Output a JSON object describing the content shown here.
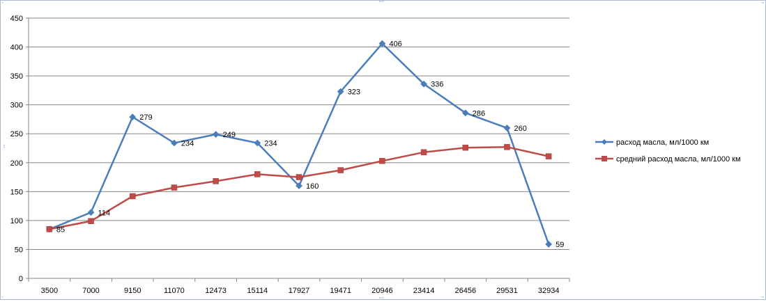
{
  "chart_data": {
    "type": "line",
    "categories": [
      "3500",
      "7000",
      "9150",
      "11070",
      "12473",
      "15114",
      "17927",
      "19471",
      "20946",
      "23414",
      "26456",
      "29531",
      "32934"
    ],
    "ylim": [
      0,
      450
    ],
    "yticks": [
      0,
      50,
      100,
      150,
      200,
      250,
      300,
      350,
      400,
      450
    ],
    "grid": true,
    "legend_position": "right",
    "series": [
      {
        "name": "расход масла, мл/1000 км",
        "color": "#4a7ebb",
        "marker": "diamond",
        "values": [
          85,
          114,
          279,
          234,
          249,
          234,
          160,
          323,
          406,
          336,
          286,
          260,
          59
        ],
        "data_labels": [
          "85",
          "114",
          "279",
          "234",
          "249",
          "234",
          "160",
          "323",
          "406",
          "336",
          "286",
          "260",
          "59"
        ]
      },
      {
        "name": "средний расход масла, мл/1000 км",
        "color": "#be4b48",
        "marker": "square",
        "values": [
          85,
          99,
          142,
          157,
          168,
          180,
          175,
          187,
          203,
          218,
          226,
          227,
          211
        ]
      }
    ]
  }
}
